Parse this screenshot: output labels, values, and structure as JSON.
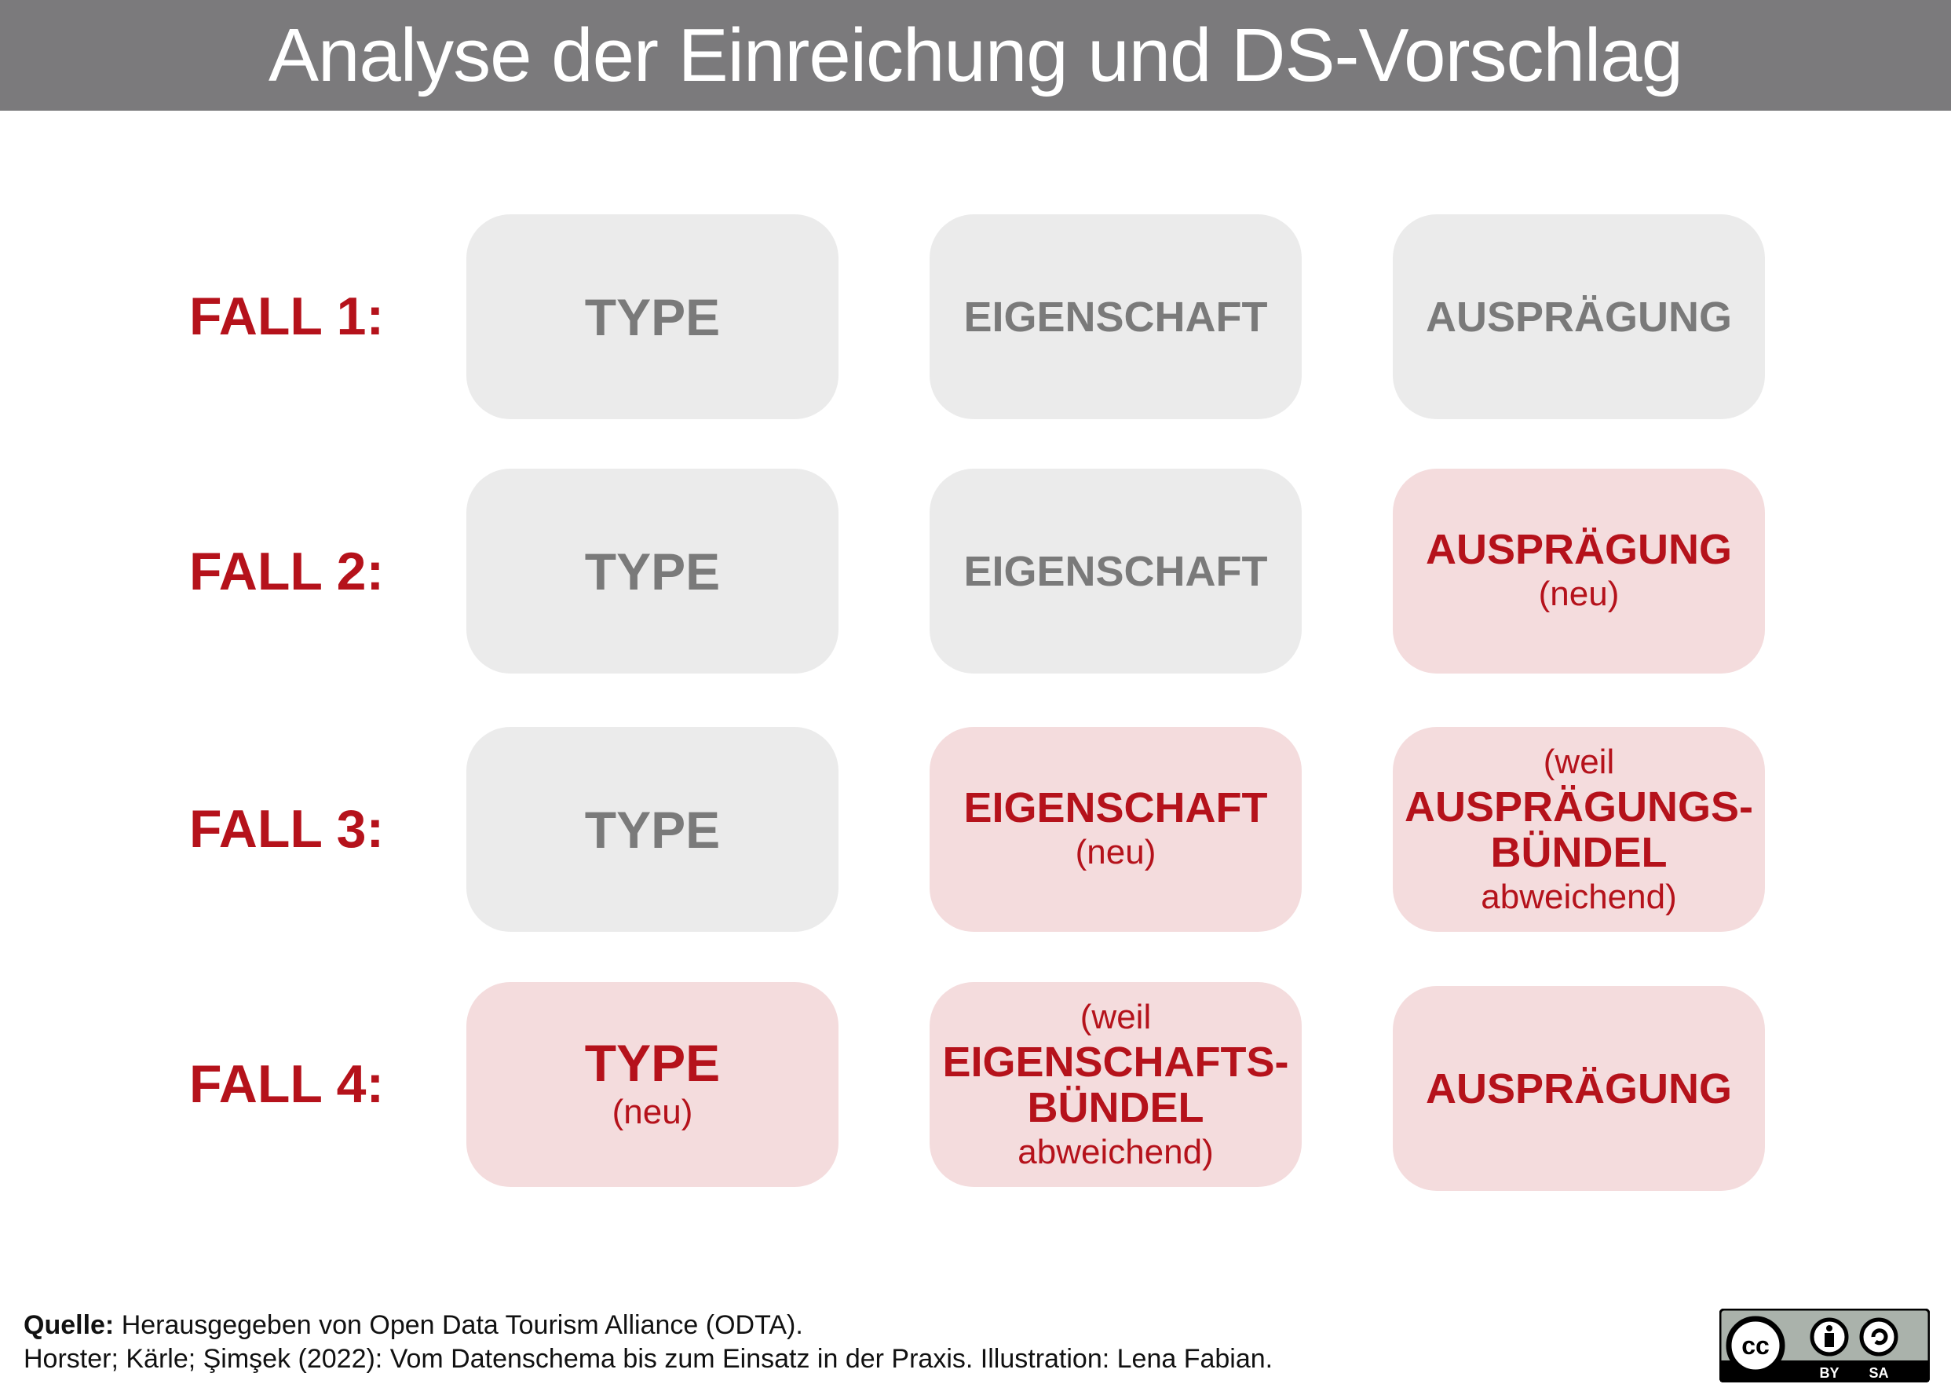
{
  "title": "Analyse der Einreichung und DS-Vorschlag",
  "colors": {
    "title_bar": "#7b7a7c",
    "accent_red": "#b5121b",
    "box_gray": "#ebebeb",
    "box_pink": "#f4dcdd",
    "text_gray": "#7a7a7a"
  },
  "rows": [
    {
      "label": "FALL 1:",
      "cells": [
        {
          "state": "existing",
          "main": "TYPE"
        },
        {
          "state": "existing",
          "main": "EIGENSCHAFT"
        },
        {
          "state": "existing",
          "main": "AUSPRÄGUNG"
        }
      ]
    },
    {
      "label": "FALL 2:",
      "cells": [
        {
          "state": "existing",
          "main": "TYPE"
        },
        {
          "state": "existing",
          "main": "EIGENSCHAFT"
        },
        {
          "state": "new",
          "main": "AUSPRÄGUNG",
          "sub": "(neu)"
        }
      ]
    },
    {
      "label": "FALL 3:",
      "cells": [
        {
          "state": "existing",
          "main": "TYPE"
        },
        {
          "state": "new",
          "main": "EIGENSCHAFT",
          "sub": "(neu)"
        },
        {
          "state": "new",
          "pre": "(weil",
          "main1": "AUSPRÄGUNGS-",
          "main2": "BÜNDEL",
          "post": "abweichend)"
        }
      ]
    },
    {
      "label": "FALL 4:",
      "cells": [
        {
          "state": "new",
          "main": "TYPE",
          "sub": "(neu)"
        },
        {
          "state": "new",
          "pre": "(weil",
          "main1": "EIGENSCHAFTS-",
          "main2": "BÜNDEL",
          "post": "abweichend)"
        },
        {
          "state": "new",
          "main": "AUSPRÄGUNG"
        }
      ]
    }
  ],
  "footer": {
    "source_label": "Quelle:",
    "source_text": " Herausgegeben von Open Data Tourism Alliance (ODTA).",
    "citation": "Horster; Kärle; Şimşek (2022): Vom Datenschema bis zum Einsatz in der Praxis. Illustration: Lena Fabian."
  },
  "license_badge": {
    "icon": "cc-by-sa-icon",
    "labels": [
      "BY",
      "SA"
    ],
    "logo_text": "cc"
  }
}
